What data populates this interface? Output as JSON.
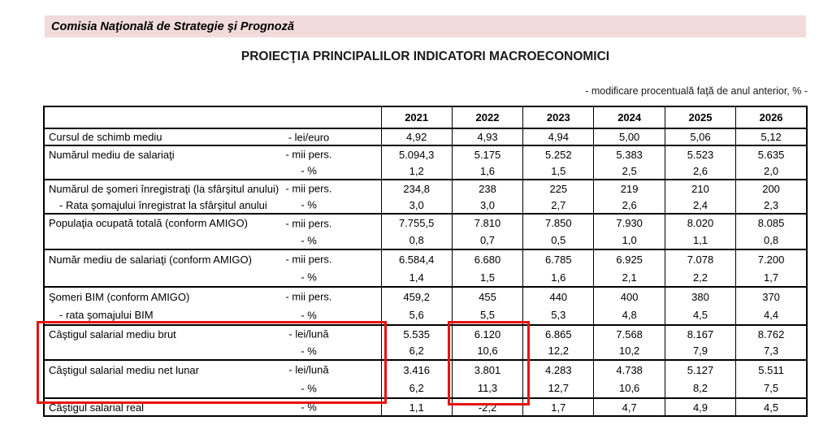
{
  "header": {
    "org_name": "Comisia Naţională de Strategie şi Prognoză"
  },
  "title": "PROIECŢIA PRINCIPALILOR INDICATORI MACROECONOMICI",
  "subtitle": "- modificare procentuală faţă de anul anterior, % -",
  "colors": {
    "header_bar_bg": "#f2dbdb",
    "highlight": "#e8120c"
  },
  "table": {
    "years": [
      "2021",
      "2022",
      "2023",
      "2024",
      "2025",
      "2026"
    ],
    "groups": [
      {
        "rows": [
          {
            "label": "Cursul de schimb mediu",
            "unit": "- lei/euro",
            "values": [
              "4,92",
              "4,93",
              "4,94",
              "5,00",
              "5,06",
              "5,12"
            ]
          }
        ]
      },
      {
        "rows": [
          {
            "label": "Numărul mediu de salariaţi",
            "unit": "- mii pers.",
            "values": [
              "5.094,3",
              "5.175",
              "5.252",
              "5.383",
              "5.523",
              "5.635"
            ]
          },
          {
            "label": "",
            "unit": "- %",
            "values": [
              "1,2",
              "1,6",
              "1,5",
              "2,5",
              "2,6",
              "2,0"
            ]
          }
        ]
      },
      {
        "rows": [
          {
            "label": "Numărul de şomeri înregistraţi (la sfârşitul anului)",
            "unit": "- mii pers.",
            "values": [
              "234,8",
              "238",
              "225",
              "219",
              "210",
              "200"
            ]
          },
          {
            "label": "- Rata şomajului înregistrat la sfârşitul anului",
            "unit": "- %",
            "values": [
              "3,0",
              "3,0",
              "2,7",
              "2,6",
              "2,4",
              "2,3"
            ]
          }
        ]
      },
      {
        "rows": [
          {
            "label": "Populaţia ocupată totală (conform AMIGO)",
            "unit": "- mii pers.",
            "values": [
              "7.755,5",
              "7.810",
              "7.850",
              "7.930",
              "8.020",
              "8.085"
            ]
          },
          {
            "label": "",
            "unit": "- %",
            "values": [
              "0,8",
              "0,7",
              "0,5",
              "1,0",
              "1,1",
              "0,8"
            ]
          }
        ]
      },
      {
        "rows": [
          {
            "label": "Număr mediu de salariaţi (conform AMIGO)",
            "unit": "- mii pers.",
            "values": [
              "6.584,4",
              "6.680",
              "6.785",
              "6.925",
              "7.078",
              "7.200"
            ]
          },
          {
            "label": "",
            "unit": "- %",
            "values": [
              "1,4",
              "1,5",
              "1,6",
              "2,1",
              "2,2",
              "1,7"
            ]
          }
        ]
      },
      {
        "rows": [
          {
            "label": "Şomeri BIM (conform AMIGO)",
            "unit": "- mii pers.",
            "values": [
              "459,2",
              "455",
              "440",
              "400",
              "380",
              "370"
            ]
          },
          {
            "label": "- rata şomajului BIM",
            "unit": "- %",
            "values": [
              "5,6",
              "5,5",
              "5,3",
              "4,8",
              "4,5",
              "4,4"
            ]
          }
        ]
      },
      {
        "rows": [
          {
            "label": "Câştigul salarial mediu brut",
            "unit": "- lei/lună",
            "values": [
              "5.535",
              "6.120",
              "6.865",
              "7.568",
              "8.167",
              "8.762"
            ]
          },
          {
            "label": "",
            "unit": "- %",
            "values": [
              "6,2",
              "10,6",
              "12,2",
              "10,2",
              "7,9",
              "7,3"
            ]
          }
        ]
      },
      {
        "rows": [
          {
            "label": "Câştigul salarial mediu net lunar",
            "unit": "- lei/lună",
            "values": [
              "3.416",
              "3.801",
              "4.283",
              "4.738",
              "5.127",
              "5.511"
            ]
          },
          {
            "label": "",
            "unit": "- %",
            "values": [
              "6,2",
              "11,3",
              "12,7",
              "10,6",
              "8,2",
              "7,5"
            ]
          }
        ]
      },
      {
        "rows": [
          {
            "label": "Câştigul salarial real",
            "unit": "- %",
            "values": [
              "1,1",
              "-2,2",
              "1,7",
              "4,7",
              "4,9",
              "4,5"
            ]
          }
        ]
      }
    ],
    "highlights": {
      "boxed_indicator_rows": [
        "Câştigul salarial mediu brut",
        "Câştigul salarial mediu net lunar"
      ],
      "boxed_year_column": "2022"
    }
  }
}
